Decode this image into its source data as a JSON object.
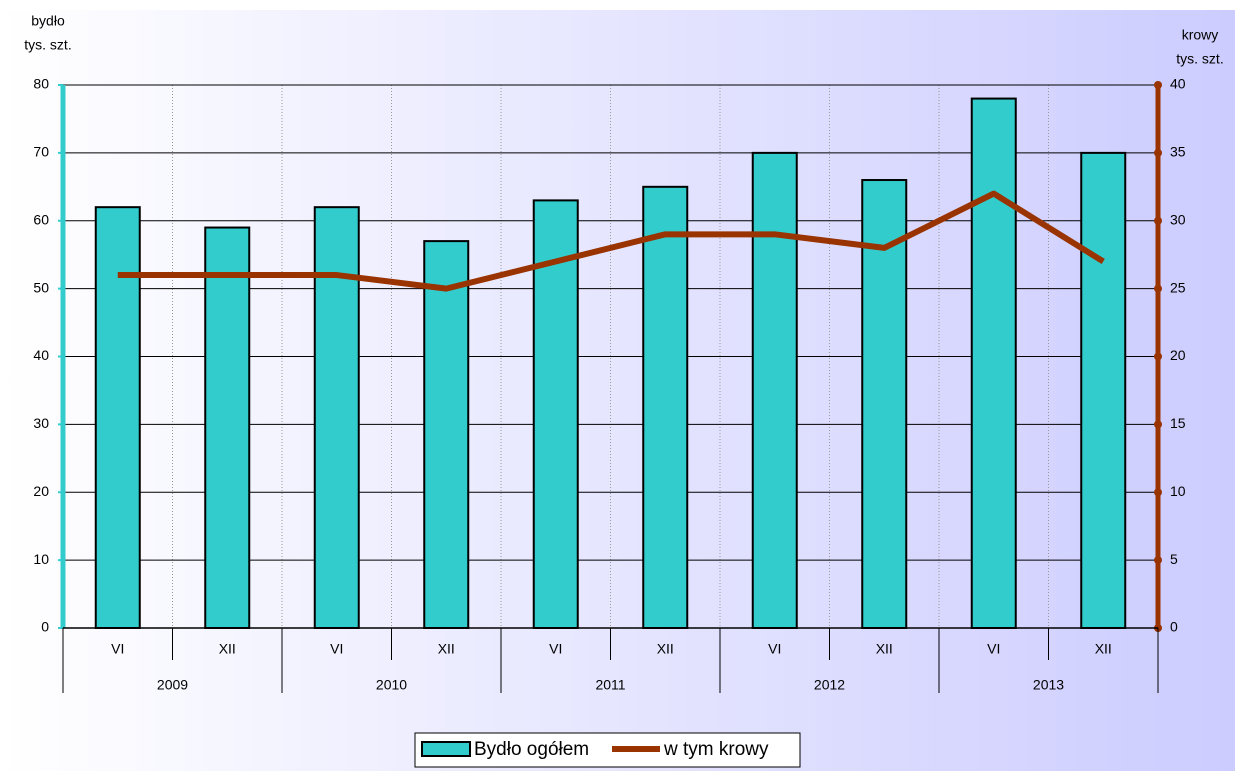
{
  "chart_data": {
    "type": "bar",
    "ylabel": [
      "bydło",
      "tys. szt."
    ],
    "y2label": [
      "krowy",
      "tys. szt."
    ],
    "categories": [
      "VI",
      "XII",
      "VI",
      "XII",
      "VI",
      "XII",
      "VI",
      "XII",
      "VI",
      "XII"
    ],
    "groups": [
      "2009",
      "2010",
      "2011",
      "2012",
      "2013"
    ],
    "series": [
      {
        "name": "Bydło ogółem",
        "type": "bar",
        "color": "#33cccc",
        "values": [
          62,
          59,
          62,
          57,
          63,
          65,
          70,
          66,
          78,
          70
        ]
      },
      {
        "name": "w tym krowy",
        "type": "line",
        "axis": "y2",
        "color": "#993300",
        "values": [
          26,
          26,
          26,
          25,
          27,
          29,
          29,
          28,
          32,
          27
        ]
      }
    ],
    "ylim": [
      0,
      80
    ],
    "yticks": [
      0,
      10,
      20,
      30,
      40,
      50,
      60,
      70,
      80
    ],
    "y2lim": [
      0,
      40
    ],
    "y2ticks": [
      0,
      5,
      10,
      15,
      20,
      25,
      30,
      35,
      40
    ],
    "grid": true,
    "legend": "bottom"
  }
}
